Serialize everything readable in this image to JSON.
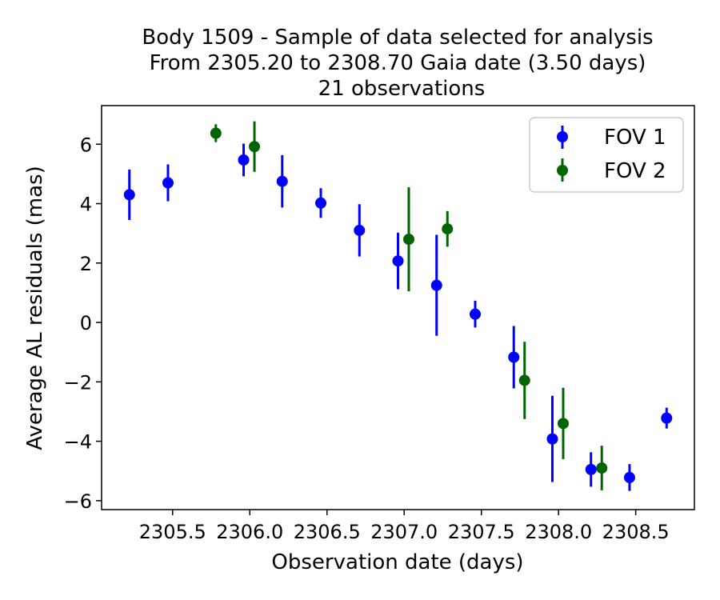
{
  "chart_data": {
    "type": "scatter",
    "title": [
      "Body 1509 - Sample of data selected for analysis",
      "From 2305.20 to 2308.70 Gaia date (3.50 days)",
      "21 observations"
    ],
    "xlabel": "Observation date (days)",
    "ylabel": "Average AL residuals (mas)",
    "xlim": [
      2305.04,
      2308.88
    ],
    "ylim": [
      -6.3,
      7.3
    ],
    "xticks": [
      2305.5,
      2306.0,
      2306.5,
      2307.0,
      2307.5,
      2308.0,
      2308.5
    ],
    "xtick_labels": [
      "2305.5",
      "2306.0",
      "2306.5",
      "2307.0",
      "2307.5",
      "2308.0",
      "2308.5"
    ],
    "yticks": [
      -6,
      -4,
      -2,
      0,
      2,
      4,
      6
    ],
    "ytick_labels": [
      "−6",
      "−4",
      "−2",
      "0",
      "2",
      "4",
      "6"
    ],
    "grid": false,
    "legend_position": "top-right",
    "series": [
      {
        "name": "FOV 1",
        "color": "#0000ff",
        "points": [
          {
            "x": 2305.22,
            "y": 4.3,
            "err": 0.85
          },
          {
            "x": 2305.47,
            "y": 4.7,
            "err": 0.62
          },
          {
            "x": 2305.96,
            "y": 5.47,
            "err": 0.55
          },
          {
            "x": 2306.21,
            "y": 4.75,
            "err": 0.88
          },
          {
            "x": 2306.46,
            "y": 4.02,
            "err": 0.5
          },
          {
            "x": 2306.71,
            "y": 3.1,
            "err": 0.88
          },
          {
            "x": 2306.96,
            "y": 2.07,
            "err": 0.95
          },
          {
            "x": 2307.21,
            "y": 1.25,
            "err": 1.7
          },
          {
            "x": 2307.46,
            "y": 0.28,
            "err": 0.45
          },
          {
            "x": 2307.71,
            "y": -1.17,
            "err": 1.05
          },
          {
            "x": 2307.96,
            "y": -3.92,
            "err": 1.45
          },
          {
            "x": 2308.21,
            "y": -4.95,
            "err": 0.58
          },
          {
            "x": 2308.46,
            "y": -5.22,
            "err": 0.45
          },
          {
            "x": 2308.7,
            "y": -3.22,
            "err": 0.35
          }
        ]
      },
      {
        "name": "FOV 2",
        "color": "#006400",
        "points": [
          {
            "x": 2305.78,
            "y": 6.37,
            "err": 0.3
          },
          {
            "x": 2306.03,
            "y": 5.92,
            "err": 0.85
          },
          {
            "x": 2307.03,
            "y": 2.8,
            "err": 1.75
          },
          {
            "x": 2307.28,
            "y": 3.15,
            "err": 0.6
          },
          {
            "x": 2307.78,
            "y": -1.95,
            "err": 1.3
          },
          {
            "x": 2308.03,
            "y": -3.4,
            "err": 1.2
          },
          {
            "x": 2308.28,
            "y": -4.9,
            "err": 0.75
          }
        ]
      }
    ]
  }
}
